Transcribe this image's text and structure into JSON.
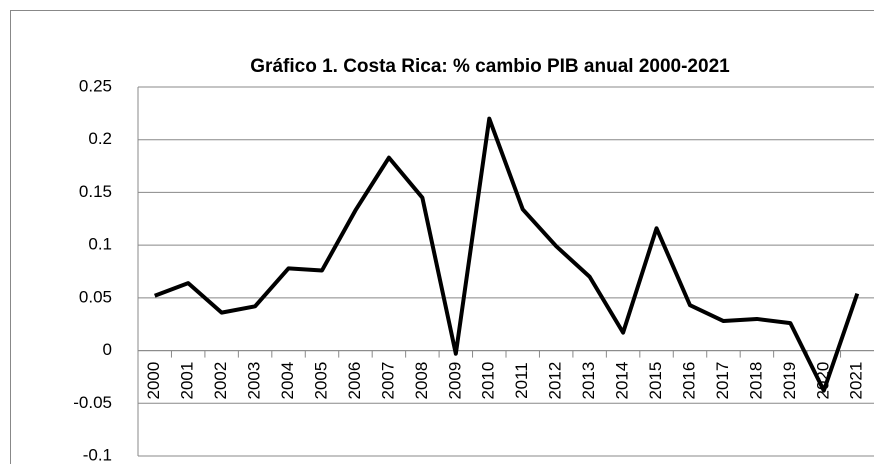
{
  "chart_data": {
    "type": "line",
    "title": "Gráfico 1. Costa Rica: % cambio PIB anual 2000-2021",
    "categories": [
      "2000",
      "2001",
      "2002",
      "2003",
      "2004",
      "2005",
      "2006",
      "2007",
      "2008",
      "2009",
      "2010",
      "2011",
      "2012",
      "2013",
      "2014",
      "2015",
      "2016",
      "2017",
      "2018",
      "2019",
      "2020",
      "2021"
    ],
    "values": [
      0.052,
      0.064,
      0.036,
      0.042,
      0.078,
      0.076,
      0.133,
      0.183,
      0.145,
      -0.003,
      0.22,
      0.134,
      0.099,
      0.07,
      0.017,
      0.116,
      0.043,
      0.028,
      0.03,
      0.026,
      -0.038,
      0.054
    ],
    "color": "#000000",
    "ylim": [
      -0.1,
      0.25
    ],
    "yticks": [
      -0.1,
      -0.05,
      0,
      0.05,
      0.1,
      0.15,
      0.2,
      0.25
    ],
    "grid": true
  }
}
